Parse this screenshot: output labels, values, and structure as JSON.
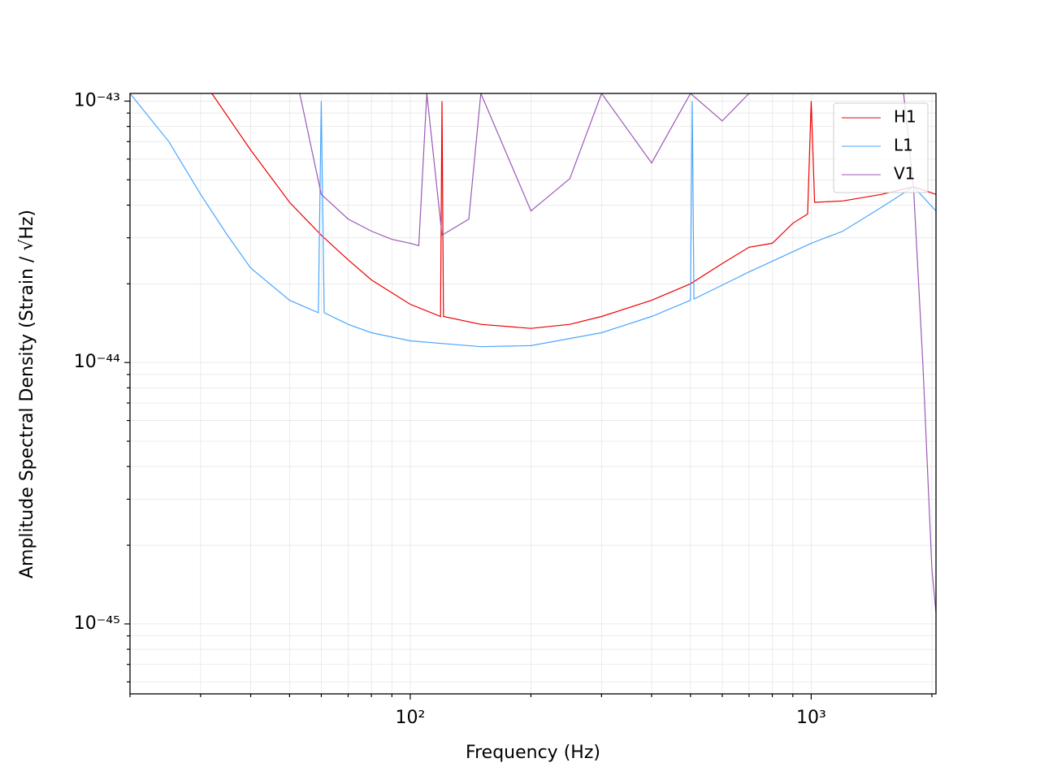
{
  "chart_data": {
    "type": "line",
    "x_label": "Frequency (Hz)",
    "y_label": "Amplitude Spectral Density (Strain / √Hz)",
    "log_x": true,
    "log_y": true,
    "grid": true,
    "legend": "upper right",
    "xlim": [
      20,
      2048
    ],
    "ylim": [
      5.4e-46,
      1.07e-43
    ],
    "xticks": [
      {
        "value": 100,
        "label": "10²"
      },
      {
        "value": 1000,
        "label": "10³"
      }
    ],
    "yticks": [
      {
        "value": 1e-45,
        "label": "10⁻⁴⁵"
      },
      {
        "value": 1e-44,
        "label": "10⁻⁴⁴"
      },
      {
        "value": 1e-43,
        "label": "10⁻⁴³"
      }
    ],
    "xminor": [
      20,
      30,
      40,
      50,
      60,
      70,
      80,
      90,
      200,
      300,
      400,
      500,
      600,
      700,
      800,
      900,
      2000
    ],
    "yminor": [
      6e-46,
      7e-46,
      8e-46,
      9e-46,
      2e-45,
      3e-45,
      4e-45,
      5e-45,
      6e-45,
      7e-45,
      8e-45,
      9e-45,
      2e-44,
      3e-44,
      4e-44,
      5e-44,
      6e-44,
      7e-44,
      8e-44,
      9e-44
    ],
    "series": [
      {
        "name": "H1",
        "color": "#ee0000",
        "x": [
          32,
          40,
          50,
          60,
          70,
          80,
          100,
          119,
          120,
          121,
          150,
          200,
          250,
          300,
          400,
          500,
          600,
          700,
          800,
          900,
          980,
          1000,
          1020,
          1200,
          1500,
          1800,
          2048
        ],
        "values": [
          1.07e-43,
          6.5e-44,
          4.1e-44,
          3.07e-44,
          2.47e-44,
          2.07e-44,
          1.67e-44,
          1.5e-44,
          1e-43,
          1.5e-44,
          1.4e-44,
          1.35e-44,
          1.4e-44,
          1.5e-44,
          1.73e-44,
          2e-44,
          2.39e-44,
          2.76e-44,
          2.86e-44,
          3.41e-44,
          3.7e-44,
          1e-43,
          4.1e-44,
          4.15e-44,
          4.4e-44,
          4.7e-44,
          4.4e-44
        ]
      },
      {
        "name": "L1",
        "color": "#4ba6ff",
        "x": [
          20,
          25,
          30,
          35,
          40,
          50,
          59,
          60,
          61,
          70,
          80,
          100,
          150,
          200,
          300,
          400,
          500,
          505,
          510,
          700,
          1000,
          1200,
          1500,
          1800,
          2048
        ],
        "values": [
          1.07e-43,
          7e-44,
          4.4e-44,
          3.07e-44,
          2.3e-44,
          1.73e-44,
          1.55e-44,
          1e-43,
          1.55e-44,
          1.4e-44,
          1.3e-44,
          1.21e-44,
          1.15e-44,
          1.16e-44,
          1.3e-44,
          1.5e-44,
          1.73e-44,
          1e-43,
          1.75e-44,
          2.22e-44,
          2.86e-44,
          3.18e-44,
          3.93e-44,
          4.7e-44,
          3.8e-44
        ]
      },
      {
        "name": "V1",
        "color": "#9b59b6",
        "x": [
          53,
          60,
          70,
          80,
          90,
          100,
          105,
          110,
          120,
          140,
          150,
          200,
          250,
          300,
          400,
          500,
          600,
          700,
          1000,
          1700,
          1800,
          1900,
          2000,
          2048
        ],
        "values": [
          1.07e-43,
          4.4e-44,
          3.54e-44,
          3.18e-44,
          2.96e-44,
          2.86e-44,
          2.8e-44,
          1.07e-43,
          3.07e-44,
          3.54e-44,
          1.07e-43,
          3.8e-44,
          5.05e-44,
          1.07e-43,
          5.8e-44,
          1.07e-43,
          8.4e-44,
          1.07e-43,
          1.07e-43,
          1.07e-43,
          4.7e-44,
          9.8e-45,
          1.63e-45,
          1.1e-45
        ]
      }
    ]
  }
}
